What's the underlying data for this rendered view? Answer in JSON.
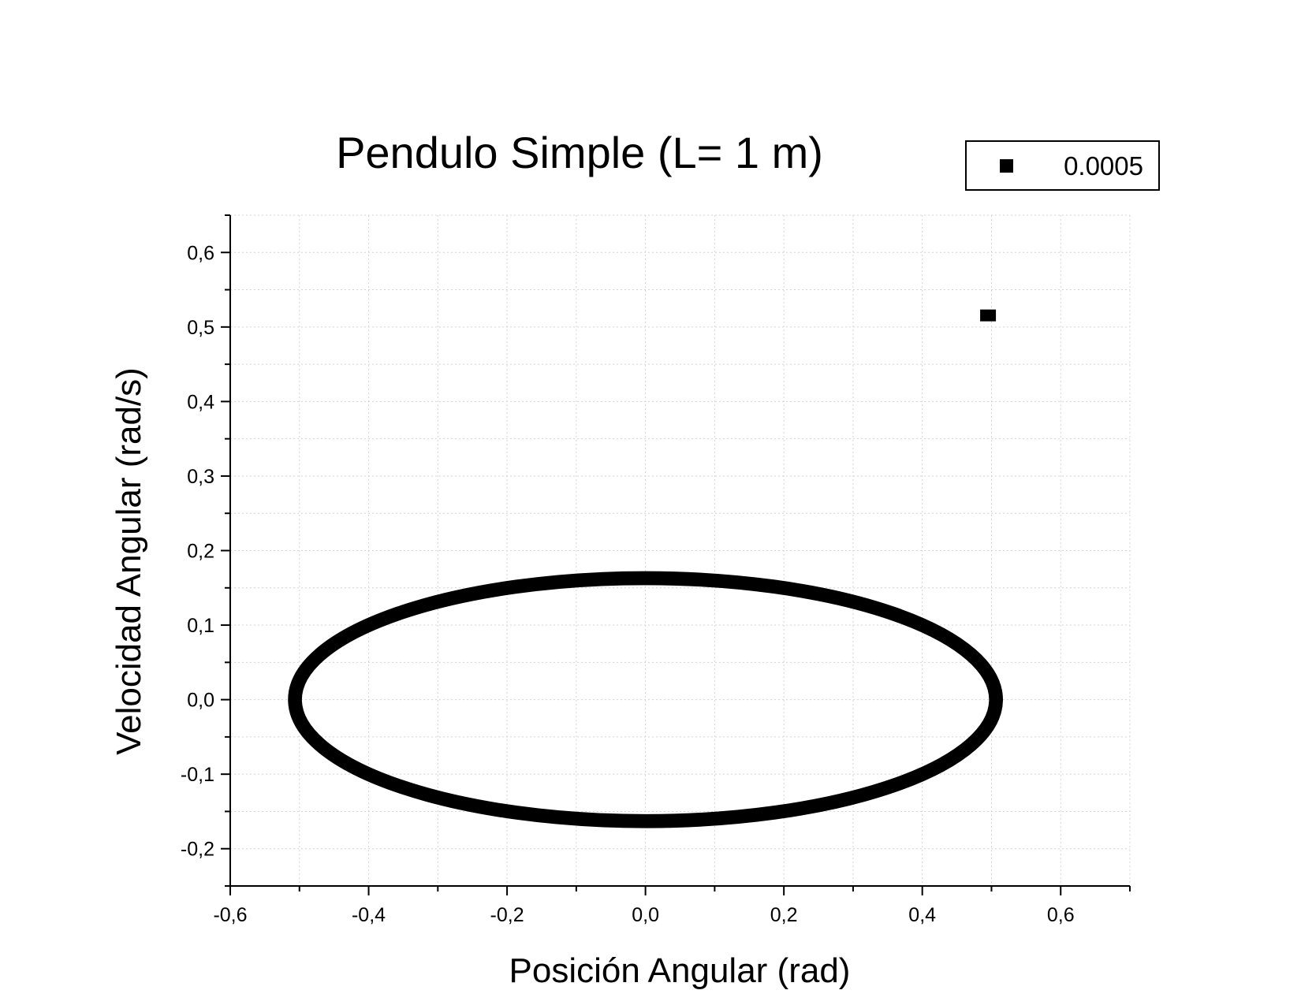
{
  "chart_data": {
    "type": "scatter",
    "title": "Pendulo Simple (L= 1 m)",
    "xlabel": "Posición Angular (rad)",
    "ylabel": "Velocidad Angular (rad/s)",
    "xlim": [
      -0.6,
      0.7
    ],
    "ylim": [
      -0.25,
      0.65
    ],
    "x_ticks": [
      "-0,6",
      "-0,4",
      "-0,2",
      "0,0",
      "0,2",
      "0,4",
      "0,6"
    ],
    "x_tick_values": [
      -0.6,
      -0.4,
      -0.2,
      0.0,
      0.2,
      0.4,
      0.6
    ],
    "y_ticks": [
      "-0,2",
      "-0,1",
      "0,0",
      "0,1",
      "0,2",
      "0,3",
      "0,4",
      "0,5",
      "0,6"
    ],
    "y_tick_values": [
      -0.2,
      -0.1,
      0.0,
      0.1,
      0.2,
      0.3,
      0.4,
      0.5,
      0.6
    ],
    "grid": true,
    "legend_position": "top-right",
    "series": [
      {
        "name": "0.0005",
        "color": "#000000",
        "marker": "square",
        "trajectory": {
          "shape": "ellipse",
          "center": [
            0.0,
            0.0
          ],
          "x_amplitude": [
            0.495,
            0.518
          ],
          "y_amplitude": [
            0.155,
            0.171
          ]
        },
        "isolated_points": [
          [
            0.495,
            0.515
          ]
        ]
      }
    ]
  }
}
